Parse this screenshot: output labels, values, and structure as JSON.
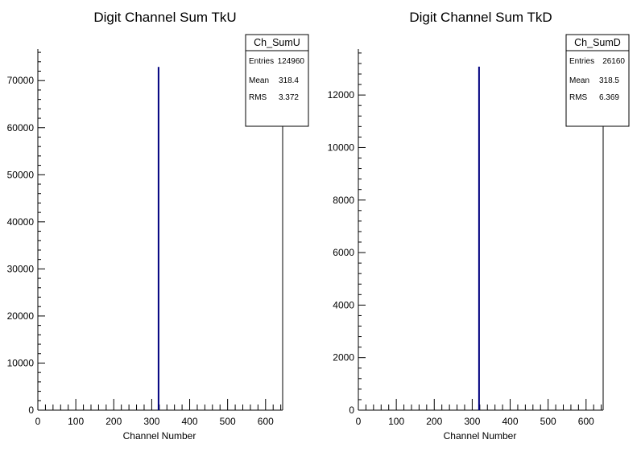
{
  "chart_data": [
    {
      "type": "bar",
      "title": "Digit Channel Sum TkU",
      "xlabel": "Channel Number",
      "ylabel": "",
      "xlim": [
        0,
        645
      ],
      "ylim": [
        0,
        76700
      ],
      "x_ticks": [
        0,
        100,
        200,
        300,
        400,
        500,
        600
      ],
      "y_ticks": [
        0,
        10000,
        20000,
        30000,
        40000,
        50000,
        60000,
        70000
      ],
      "x_minor_step": 20,
      "y_minor_step": 2000,
      "bars": [
        {
          "x": 318,
          "value": 72900
        }
      ],
      "bar_color": "#00007f",
      "stats": {
        "name": "Ch_SumU",
        "rows": [
          {
            "label": "Entries",
            "value": "124960"
          },
          {
            "label": "Mean",
            "value": "318.4"
          },
          {
            "label": "RMS",
            "value": "3.372"
          }
        ]
      }
    },
    {
      "type": "bar",
      "title": "Digit Channel Sum TkD",
      "xlabel": "Channel Number",
      "ylabel": "",
      "xlim": [
        0,
        645
      ],
      "ylim": [
        0,
        13750
      ],
      "x_ticks": [
        0,
        100,
        200,
        300,
        400,
        500,
        600
      ],
      "y_ticks": [
        0,
        2000,
        4000,
        6000,
        8000,
        10000,
        12000
      ],
      "x_minor_step": 20,
      "y_minor_step": 400,
      "bars": [
        {
          "x": 318,
          "value": 13080
        }
      ],
      "bar_color": "#00007f",
      "stats": {
        "name": "Ch_SumD",
        "rows": [
          {
            "label": "Entries",
            "value": "26160"
          },
          {
            "label": "Mean",
            "value": "318.5"
          },
          {
            "label": "RMS",
            "value": "6.369"
          }
        ]
      }
    }
  ]
}
